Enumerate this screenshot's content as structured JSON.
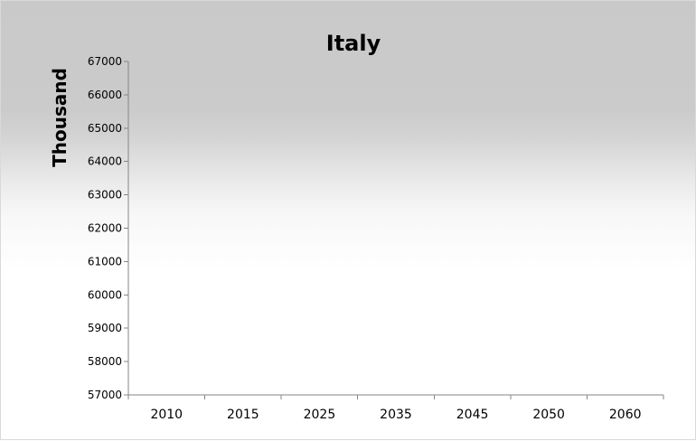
{
  "chart_data": {
    "type": "line",
    "title": "Italy",
    "xlabel": "",
    "ylabel": "Thousand",
    "categories": [
      "2010",
      "2015",
      "2025",
      "2035",
      "2045",
      "2050",
      "2060"
    ],
    "series": [],
    "ylim": [
      57000,
      67000
    ],
    "yticks": [
      "67000",
      "66000",
      "65000",
      "64000",
      "63000",
      "62000",
      "61000",
      "60000",
      "59000",
      "58000",
      "57000"
    ],
    "grid": false,
    "legend": "none"
  }
}
